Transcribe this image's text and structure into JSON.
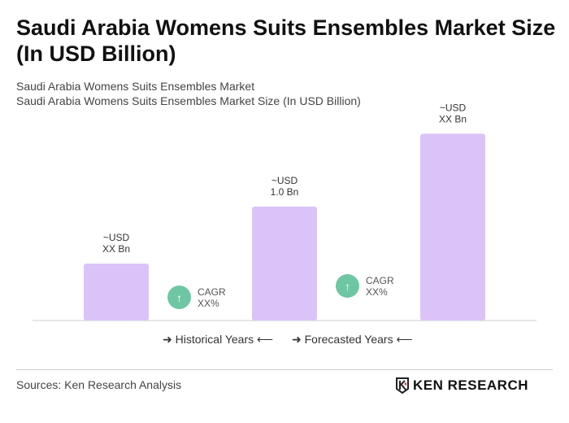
{
  "title": "Saudi Arabia Womens Suits Ensembles Market Size (In USD Billion)",
  "subtitle1": "Saudi Arabia Womens Suits Ensembles Market",
  "subtitle2": "Saudi Arabia Womens Suits Ensembles Market Size (In USD Billion)",
  "chart_data": {
    "type": "bar",
    "categories": [
      "",
      "",
      ""
    ],
    "values": [
      0.5,
      1.0,
      1.64
    ],
    "data_labels": [
      [
        "~USD",
        "XX Bn"
      ],
      [
        "~USD",
        "1.0 Bn"
      ],
      [
        "~USD",
        "XX Bn"
      ]
    ],
    "bar_color": "#dcc3f7",
    "grid": false,
    "cagr": [
      {
        "label": "CAGR",
        "value": "XX%"
      },
      {
        "label": "CAGR",
        "value": "XX%"
      }
    ],
    "legend": {
      "historical": "Historical Years",
      "forecasted": "Forecasted Years"
    }
  },
  "footer": {
    "sources": "Sources: Ken Research Analysis",
    "logo": "KEN RESEARCH"
  }
}
